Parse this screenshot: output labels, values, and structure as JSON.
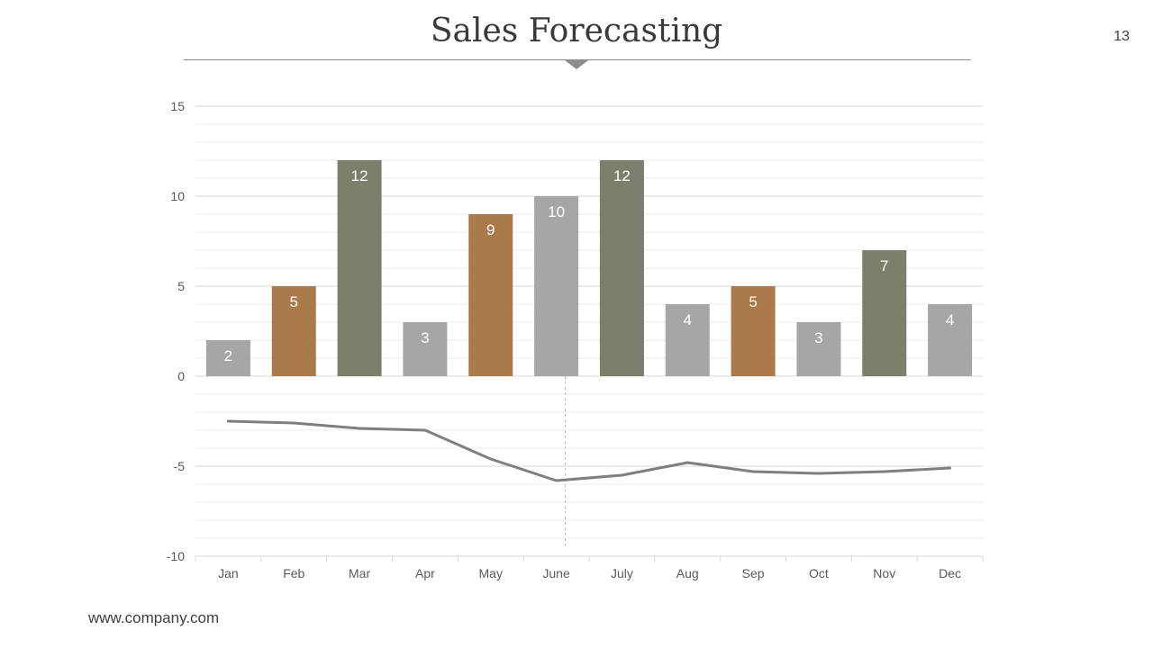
{
  "slide": {
    "title": "Sales Forecasting",
    "page_number": "13",
    "footer": "www.company.com"
  },
  "colors": {
    "gray": "#a6a6a6",
    "brown": "#ab7a4a",
    "olive": "#7d7f6c",
    "line": "#7f7f7f",
    "grid": "#e6e6e6",
    "title_rule": "#8c8c8c"
  },
  "chart_data": {
    "type": "bar",
    "title": "",
    "xlabel": "",
    "ylabel": "",
    "ylim": [
      -10,
      15
    ],
    "yticks": [
      15,
      10,
      5,
      0,
      -5,
      -10
    ],
    "grid": true,
    "categories": [
      "Jan",
      "Feb",
      "Mar",
      "Apr",
      "May",
      "June",
      "July",
      "Aug",
      "Sep",
      "Oct",
      "Nov",
      "Dec"
    ],
    "series": [
      {
        "type": "bar",
        "values": [
          2,
          5,
          12,
          3,
          9,
          10,
          12,
          4,
          5,
          3,
          7,
          4
        ],
        "bar_colors": [
          "gray",
          "brown",
          "olive",
          "gray",
          "brown",
          "gray",
          "olive",
          "gray",
          "brown",
          "gray",
          "olive",
          "gray"
        ],
        "data_labels": true
      },
      {
        "type": "line",
        "values": [
          -2.5,
          -2.6,
          -2.9,
          -3.0,
          -4.6,
          -5.8,
          -5.5,
          -4.8,
          -5.3,
          -5.4,
          -5.3,
          -5.1
        ],
        "data_labels": false
      }
    ],
    "annotations": [
      {
        "type": "vertical-dashed-line",
        "at_category": "June"
      }
    ]
  }
}
